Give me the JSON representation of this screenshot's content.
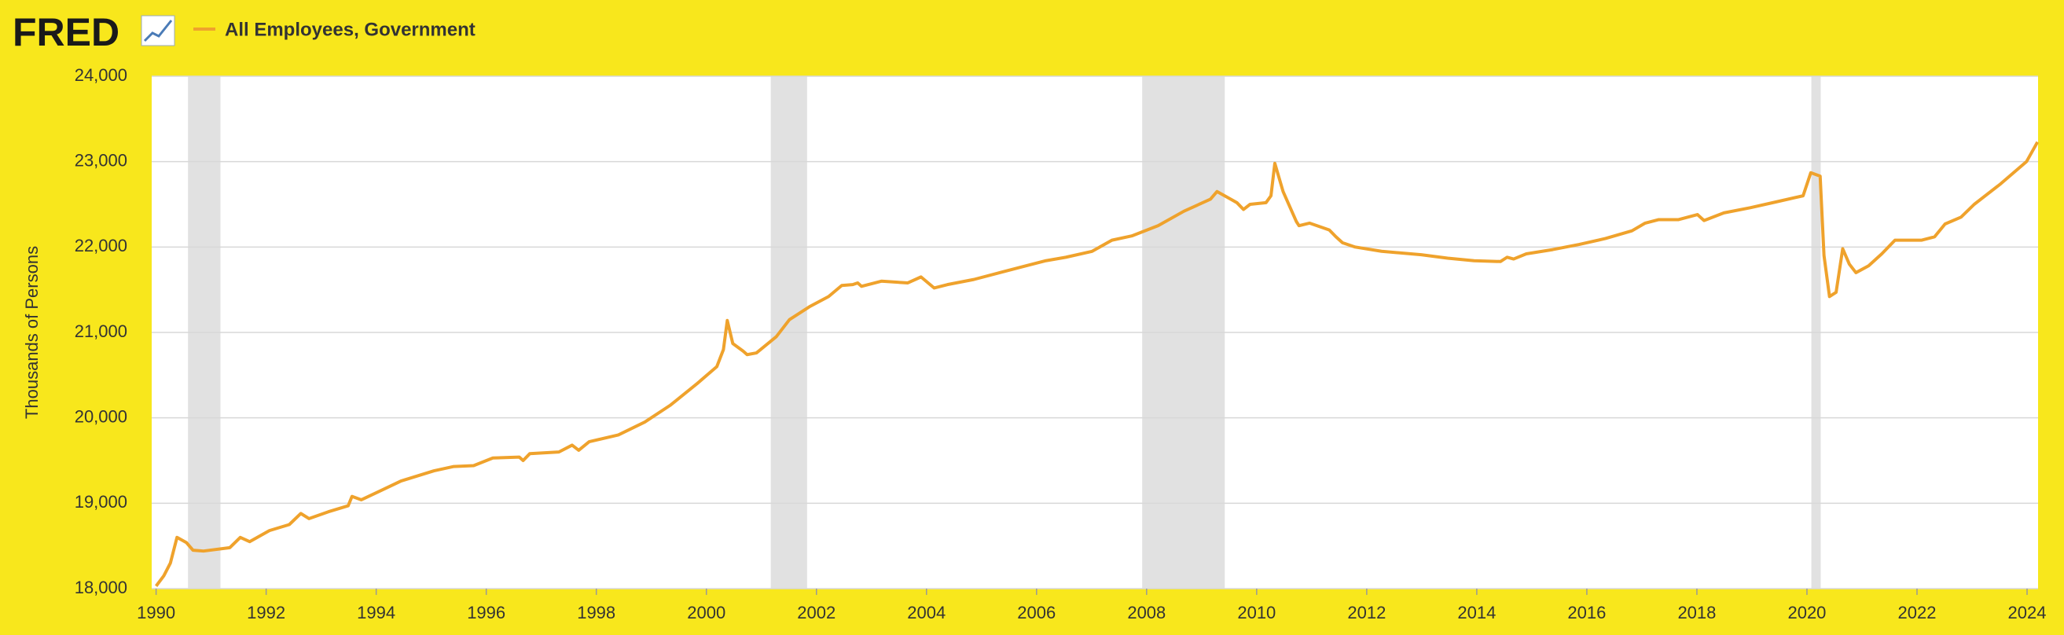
{
  "logo": "FRED",
  "chart_data": {
    "type": "line",
    "ylabel": "Thousands of Persons",
    "x": [
      1990.0,
      1990.14,
      1990.26,
      1990.38,
      1990.55,
      1990.67,
      1990.86,
      1991.34,
      1991.53,
      1991.7,
      1992.06,
      1992.42,
      1992.63,
      1992.78,
      1993.13,
      1993.49,
      1993.56,
      1993.73,
      1994.09,
      1994.45,
      1995.05,
      1995.41,
      1995.77,
      1996.12,
      1996.6,
      1996.67,
      1996.79,
      1997.32,
      1997.56,
      1997.68,
      1997.87,
      1998.4,
      1998.88,
      1999.35,
      1999.83,
      2000.19,
      2000.31,
      2000.38,
      2000.48,
      2000.67,
      2000.74,
      2000.91,
      2001.27,
      2001.51,
      2001.87,
      2002.22,
      2002.46,
      2002.66,
      2002.75,
      2002.82,
      2003.18,
      2003.66,
      2003.9,
      2004.14,
      2004.38,
      2004.86,
      2005.33,
      2005.81,
      2006.17,
      2006.53,
      2007.01,
      2007.37,
      2007.73,
      2008.21,
      2008.68,
      2009.16,
      2009.28,
      2009.64,
      2009.76,
      2009.88,
      2010.17,
      2010.26,
      2010.33,
      2010.48,
      2010.72,
      2010.77,
      2010.96,
      2011.32,
      2011.44,
      2011.56,
      2011.79,
      2012.27,
      2012.99,
      2013.47,
      2013.95,
      2014.43,
      2014.55,
      2014.67,
      2014.9,
      2015.38,
      2015.86,
      2016.34,
      2016.82,
      2017.06,
      2017.3,
      2017.66,
      2018.01,
      2018.13,
      2018.49,
      2018.97,
      2019.45,
      2019.93,
      2020.07,
      2020.24,
      2020.31,
      2020.41,
      2020.53,
      2020.65,
      2020.77,
      2020.89,
      2021.12,
      2021.36,
      2021.6,
      2022.08,
      2022.32,
      2022.51,
      2022.8,
      2023.04,
      2023.52,
      2023.99,
      2024.19
    ],
    "series": [
      {
        "name": "All Employees, Government",
        "color": "#efa22c",
        "values": [
          18030,
          18150,
          18300,
          18600,
          18540,
          18450,
          18440,
          18480,
          18600,
          18550,
          18680,
          18750,
          18880,
          18820,
          18900,
          18970,
          19080,
          19040,
          19150,
          19260,
          19380,
          19430,
          19440,
          19530,
          19540,
          19500,
          19580,
          19600,
          19680,
          19620,
          19720,
          19800,
          19950,
          20150,
          20400,
          20600,
          20800,
          21140,
          20870,
          20780,
          20740,
          20760,
          20950,
          21150,
          21300,
          21420,
          21550,
          21560,
          21580,
          21540,
          21600,
          21580,
          21650,
          21520,
          21560,
          21620,
          21700,
          21780,
          21840,
          21880,
          21950,
          22080,
          22130,
          22250,
          22420,
          22560,
          22650,
          22520,
          22440,
          22500,
          22520,
          22600,
          22980,
          22650,
          22300,
          22250,
          22280,
          22200,
          22120,
          22050,
          22000,
          21950,
          21910,
          21870,
          21840,
          21830,
          21880,
          21860,
          21920,
          21970,
          22030,
          22100,
          22190,
          22280,
          22320,
          22320,
          22380,
          22310,
          22400,
          22460,
          22530,
          22600,
          22870,
          22830,
          21900,
          21420,
          21470,
          21980,
          21800,
          21700,
          21780,
          21920,
          22080,
          22080,
          22120,
          22270,
          22350,
          22500,
          22740,
          23000,
          23230
        ]
      }
    ],
    "recessions": [
      [
        1990.58,
        1991.17
      ],
      [
        2001.17,
        2001.83
      ],
      [
        2007.92,
        2009.42
      ],
      [
        2020.08,
        2020.25
      ]
    ],
    "xlim": [
      1989.92,
      2024.2
    ],
    "xticks": [
      1990,
      1992,
      1994,
      1996,
      1998,
      2000,
      2002,
      2004,
      2006,
      2008,
      2010,
      2012,
      2014,
      2016,
      2018,
      2020,
      2022,
      2024
    ],
    "ylim": [
      18000,
      24000
    ],
    "yticks": [
      {
        "value": 18000,
        "label": "18,000"
      },
      {
        "value": 19000,
        "label": "19,000"
      },
      {
        "value": 20000,
        "label": "20,000"
      },
      {
        "value": 21000,
        "label": "21,000"
      },
      {
        "value": 22000,
        "label": "22,000"
      },
      {
        "value": 23000,
        "label": "23,000"
      },
      {
        "value": 24000,
        "label": "24,000"
      }
    ],
    "grid": true
  }
}
